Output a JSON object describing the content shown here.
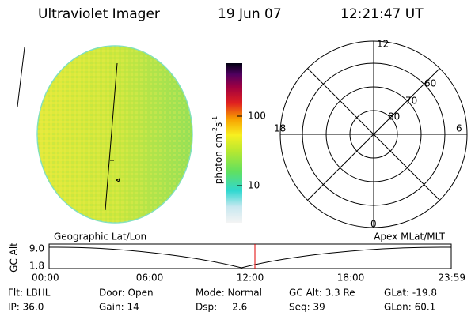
{
  "header": {
    "title": "Ultraviolet Imager",
    "date": "19 Jun 07",
    "time": "12:21:47 UT"
  },
  "colorbar": {
    "label": "photon cm",
    "exp1": "-2",
    "unit2": "s",
    "exp2": "-1",
    "ticks": [
      "100",
      "10"
    ]
  },
  "polar": {
    "clock": [
      "12",
      "18",
      "6",
      "0"
    ],
    "rings": [
      "80",
      "70",
      "60"
    ]
  },
  "timeline": {
    "left_title": "Geographic Lat/Lon",
    "right_title": "Apex MLat/MLT",
    "y_label": "GC Alt",
    "y_ticks": [
      "9.0",
      "1.8"
    ],
    "x_ticks": [
      "00:00",
      "06:00",
      "12:00",
      "18:00",
      "23:59"
    ]
  },
  "status": [
    [
      "Flt: LBHL",
      "Door: Open",
      "Mode: Normal",
      "GC Alt: 3.3 Re",
      "GLat: -19.8"
    ],
    [
      "IP: 36.0",
      "Gain: 14",
      "Dsp:     2.6",
      "Seq: 39",
      "GLon: 60.1"
    ]
  ]
}
